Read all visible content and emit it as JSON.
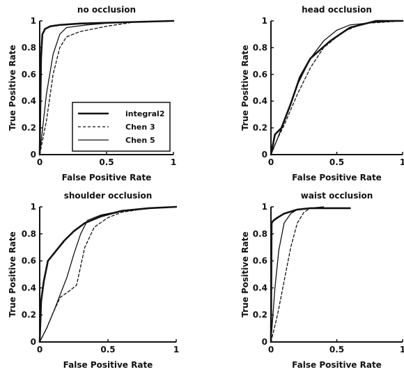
{
  "chart_data": [
    {
      "type": "line",
      "title": "no occlusion",
      "xlabel": "False Positive Rate",
      "ylabel": "True Positive Rate",
      "xlim": [
        0,
        1
      ],
      "ylim": [
        0,
        1
      ],
      "xticks": [
        "0",
        "0.5",
        "1"
      ],
      "yticks": [
        "0",
        "0.2",
        "0.4",
        "0.6",
        "0.8",
        "1"
      ],
      "legend": "lower-right",
      "series": [
        {
          "name": "integral2",
          "x": [
            0,
            0.01,
            0.02,
            0.04,
            0.08,
            0.15,
            0.3,
            1.0
          ],
          "y": [
            0,
            0.72,
            0.9,
            0.94,
            0.96,
            0.97,
            0.98,
            1.0
          ]
        },
        {
          "name": "Chen 3",
          "x": [
            0,
            0.05,
            0.1,
            0.15,
            0.2,
            0.3,
            0.5,
            0.7,
            1.0
          ],
          "y": [
            0,
            0.25,
            0.6,
            0.8,
            0.88,
            0.92,
            0.96,
            0.99,
            1.0
          ]
        },
        {
          "name": "Chen 5",
          "x": [
            0,
            0.05,
            0.1,
            0.15,
            0.2,
            0.35,
            0.6,
            1.0
          ],
          "y": [
            0,
            0.45,
            0.75,
            0.9,
            0.95,
            0.97,
            0.99,
            1.0
          ]
        }
      ]
    },
    {
      "type": "line",
      "title": "head occlusion",
      "xlabel": "False Positive Rate",
      "ylabel": "True Positive Rate",
      "xlim": [
        0,
        1
      ],
      "ylim": [
        0,
        1
      ],
      "xticks": [
        "0",
        "0.5",
        "1"
      ],
      "yticks": [
        "0",
        "0.2",
        "0.4",
        "0.6",
        "0.8",
        "1"
      ],
      "series": [
        {
          "name": "integral2",
          "x": [
            0,
            0.03,
            0.08,
            0.15,
            0.22,
            0.3,
            0.45,
            0.6,
            0.8,
            1.0
          ],
          "y": [
            0,
            0.15,
            0.2,
            0.38,
            0.58,
            0.72,
            0.85,
            0.95,
            1.0,
            1.0
          ]
        },
        {
          "name": "Chen 3",
          "x": [
            0,
            0.05,
            0.1,
            0.2,
            0.3,
            0.4,
            0.55,
            0.7,
            1.0
          ],
          "y": [
            0,
            0.12,
            0.22,
            0.45,
            0.65,
            0.8,
            0.92,
            0.98,
            1.0
          ]
        },
        {
          "name": "Chen 5",
          "x": [
            0,
            0.05,
            0.1,
            0.2,
            0.3,
            0.4,
            0.5,
            0.6,
            0.8,
            1.0
          ],
          "y": [
            0,
            0.12,
            0.25,
            0.52,
            0.72,
            0.85,
            0.93,
            0.97,
            0.99,
            1.0
          ]
        }
      ]
    },
    {
      "type": "line",
      "title": "shoulder occlusion",
      "xlabel": "False Positive Rate",
      "ylabel": "True Positive Rate",
      "xlim": [
        0,
        1
      ],
      "ylim": [
        0,
        1
      ],
      "xticks": [
        "0",
        "0.5",
        "1"
      ],
      "yticks": [
        "0",
        "0.2",
        "0.4",
        "0.6",
        "0.8",
        "1"
      ],
      "series": [
        {
          "name": "integral2",
          "x": [
            0,
            0.01,
            0.03,
            0.06,
            0.1,
            0.18,
            0.25,
            0.33,
            0.45,
            0.6,
            0.8,
            1.0
          ],
          "y": [
            0,
            0.3,
            0.45,
            0.6,
            0.65,
            0.75,
            0.82,
            0.88,
            0.93,
            0.97,
            0.99,
            1.0
          ]
        },
        {
          "name": "Chen 3",
          "x": [
            0,
            0.05,
            0.1,
            0.15,
            0.22,
            0.27,
            0.33,
            0.4,
            0.5,
            0.6,
            0.8,
            1.0
          ],
          "y": [
            0,
            0.1,
            0.22,
            0.33,
            0.38,
            0.42,
            0.7,
            0.85,
            0.92,
            0.96,
            0.99,
            1.0
          ]
        },
        {
          "name": "Chen 5",
          "x": [
            0,
            0.05,
            0.1,
            0.15,
            0.2,
            0.25,
            0.3,
            0.35,
            0.45,
            0.6,
            0.8,
            1.0
          ],
          "y": [
            0,
            0.1,
            0.22,
            0.35,
            0.48,
            0.65,
            0.8,
            0.9,
            0.94,
            0.97,
            0.99,
            1.0
          ]
        }
      ]
    },
    {
      "type": "line",
      "title": "waist occlusion",
      "xlabel": "False Positive Rate",
      "ylabel": "True Positive Rate",
      "xlim": [
        0,
        1
      ],
      "ylim": [
        0,
        1
      ],
      "xticks": [
        "0",
        "0.5",
        "1"
      ],
      "yticks": [
        "0",
        "0.2",
        "0.4",
        "0.6",
        "0.8",
        "1"
      ],
      "series": [
        {
          "name": "integral2",
          "x": [
            0,
            0.005,
            0.02,
            0.05,
            0.1,
            0.2,
            0.3,
            0.6
          ],
          "y": [
            0,
            0.88,
            0.9,
            0.92,
            0.95,
            0.98,
            0.99,
            0.99
          ]
        },
        {
          "name": "Chen 3",
          "x": [
            0,
            0.05,
            0.1,
            0.15,
            0.2,
            0.25,
            0.3,
            0.4
          ],
          "y": [
            0,
            0.2,
            0.45,
            0.7,
            0.88,
            0.96,
            0.99,
            1.0
          ]
        },
        {
          "name": "Chen 5",
          "x": [
            0,
            0.03,
            0.06,
            0.1,
            0.15,
            0.2,
            0.3,
            0.4
          ],
          "y": [
            0,
            0.4,
            0.68,
            0.88,
            0.95,
            0.98,
            0.99,
            1.0
          ]
        }
      ]
    }
  ],
  "styles": {
    "integral2": {
      "color": "#111111",
      "dash": "solid",
      "weight": "thick"
    },
    "Chen 3": {
      "color": "#111111",
      "dash": "dashed",
      "weight": "thin"
    },
    "Chen 5": {
      "color": "#111111",
      "dash": "solid",
      "weight": "thin"
    }
  }
}
